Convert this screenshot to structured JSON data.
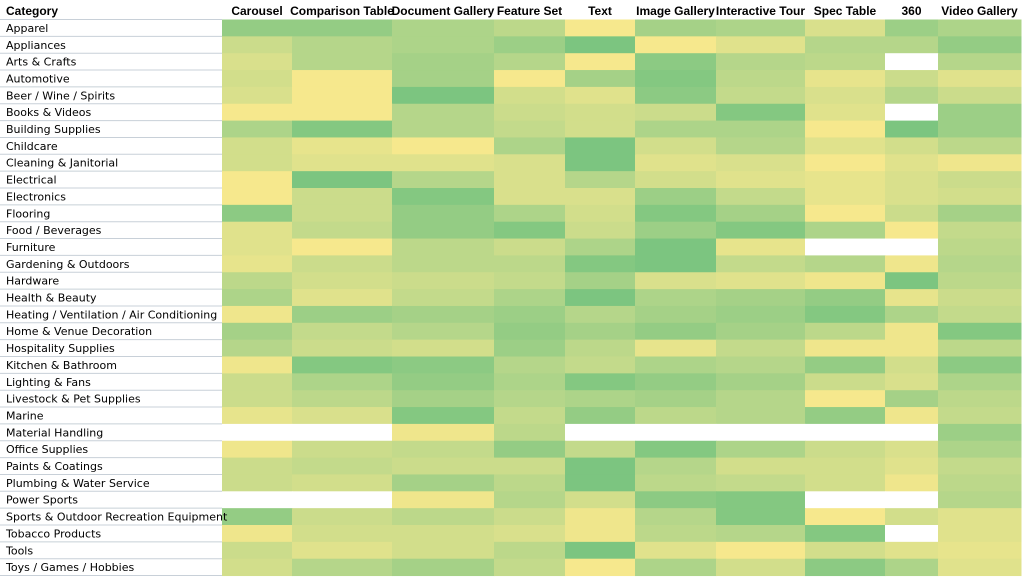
{
  "chart_data": {
    "type": "heatmap",
    "corner_label": "Category",
    "columns": [
      "Carousel",
      "Comparison Table",
      "Document Gallery",
      "Feature Set",
      "Text",
      "Image Gallery",
      "Interactive Tour",
      "Spec Table",
      "360",
      "Video Gallery"
    ],
    "rows": [
      "Apparel",
      "Appliances",
      "Arts & Crafts",
      "Automotive",
      "Beer / Wine / Spirits",
      "Books & Videos",
      "Building Supplies",
      "Childcare",
      "Cleaning & Janitorial",
      "Electrical",
      "Electronics",
      "Flooring",
      "Food / Beverages",
      "Furniture",
      "Gardening & Outdoors",
      "Hardware",
      "Health & Beauty",
      "Heating / Ventilation / Air Conditioning",
      "Home & Venue Decoration",
      "Hospitality Supplies",
      "Kitchen & Bathroom",
      "Lighting & Fans",
      "Livestock & Pet Supplies",
      "Marine",
      "Material Handling",
      "Office Supplies",
      "Paints & Coatings",
      "Plumbing & Water Service",
      "Power Sports",
      "Sports & Outdoor Recreation Equipment",
      "Tobacco Products",
      "Tools",
      "Toys / Games / Hobbies"
    ],
    "values": [
      [
        0.7,
        0.7,
        0.55,
        0.45,
        0.05,
        0.6,
        0.55,
        0.25,
        0.65,
        0.55
      ],
      [
        0.35,
        0.5,
        0.55,
        0.65,
        0.85,
        0.05,
        0.2,
        0.5,
        0.5,
        0.7
      ],
      [
        0.25,
        0.5,
        0.6,
        0.5,
        0.05,
        0.75,
        0.5,
        0.45,
        null,
        0.5
      ],
      [
        0.3,
        0.05,
        0.6,
        0.05,
        0.6,
        0.8,
        0.45,
        0.15,
        0.35,
        0.2
      ],
      [
        0.25,
        0.05,
        0.85,
        0.3,
        0.2,
        0.75,
        0.4,
        0.25,
        0.5,
        0.35
      ],
      [
        0.05,
        0.05,
        0.5,
        0.35,
        0.3,
        0.35,
        0.8,
        0.2,
        null,
        0.65
      ],
      [
        0.55,
        0.8,
        0.5,
        0.4,
        0.3,
        0.55,
        0.55,
        0.05,
        0.85,
        0.65
      ],
      [
        0.3,
        0.15,
        0.05,
        0.55,
        0.85,
        0.3,
        0.5,
        0.2,
        0.3,
        0.45
      ],
      [
        0.3,
        0.2,
        0.2,
        0.25,
        0.85,
        0.2,
        0.25,
        0.05,
        0.2,
        0.1
      ],
      [
        0.05,
        0.85,
        0.5,
        0.25,
        0.5,
        0.3,
        0.2,
        0.15,
        0.25,
        0.35
      ],
      [
        0.05,
        0.35,
        0.8,
        0.25,
        0.25,
        0.65,
        0.4,
        0.15,
        0.25,
        0.3
      ],
      [
        0.75,
        0.35,
        0.7,
        0.55,
        0.3,
        0.8,
        0.6,
        0.05,
        0.35,
        0.6
      ],
      [
        0.2,
        0.4,
        0.7,
        0.8,
        0.35,
        0.65,
        0.8,
        0.55,
        0.05,
        0.4
      ],
      [
        0.2,
        0.05,
        0.45,
        0.35,
        0.55,
        0.85,
        0.15,
        null,
        null,
        0.45
      ],
      [
        0.15,
        0.35,
        0.45,
        0.45,
        0.8,
        0.85,
        0.4,
        0.5,
        0.1,
        0.5
      ],
      [
        0.45,
        0.3,
        0.35,
        0.4,
        0.6,
        0.25,
        0.2,
        0.1,
        0.85,
        0.45
      ],
      [
        0.55,
        0.2,
        0.4,
        0.55,
        0.85,
        0.55,
        0.6,
        0.7,
        0.15,
        0.35
      ],
      [
        0.1,
        0.65,
        0.6,
        0.65,
        0.5,
        0.6,
        0.65,
        0.8,
        0.55,
        0.4
      ],
      [
        0.6,
        0.4,
        0.5,
        0.7,
        0.6,
        0.7,
        0.6,
        0.45,
        0.1,
        0.8
      ],
      [
        0.5,
        0.35,
        0.3,
        0.65,
        0.45,
        0.15,
        0.4,
        0.1,
        0.1,
        0.45
      ],
      [
        0.1,
        0.8,
        0.75,
        0.5,
        0.4,
        0.55,
        0.5,
        0.7,
        0.3,
        0.75
      ],
      [
        0.35,
        0.55,
        0.7,
        0.55,
        0.8,
        0.7,
        0.6,
        0.35,
        0.25,
        0.55
      ],
      [
        0.35,
        0.45,
        0.6,
        0.5,
        0.55,
        0.6,
        0.5,
        0.05,
        0.6,
        0.45
      ],
      [
        0.15,
        0.25,
        0.8,
        0.4,
        0.7,
        0.45,
        0.5,
        0.7,
        0.1,
        0.4
      ],
      [
        null,
        null,
        0.1,
        0.45,
        null,
        null,
        null,
        null,
        null,
        0.65
      ],
      [
        0.1,
        0.35,
        0.4,
        0.7,
        0.4,
        0.8,
        0.55,
        0.35,
        0.25,
        0.55
      ],
      [
        0.35,
        0.4,
        0.35,
        0.35,
        0.85,
        0.5,
        0.3,
        0.3,
        0.2,
        0.4
      ],
      [
        0.35,
        0.3,
        0.6,
        0.45,
        0.85,
        0.45,
        0.4,
        0.3,
        0.1,
        0.45
      ],
      [
        null,
        null,
        0.1,
        0.5,
        0.3,
        0.75,
        0.8,
        null,
        null,
        0.5
      ],
      [
        0.7,
        0.35,
        0.45,
        0.35,
        0.1,
        0.5,
        0.8,
        0.05,
        0.3,
        0.2
      ],
      [
        0.1,
        0.3,
        0.3,
        0.25,
        0.1,
        0.45,
        0.5,
        0.8,
        null,
        0.2
      ],
      [
        0.35,
        0.2,
        0.3,
        0.45,
        0.85,
        0.2,
        0.05,
        0.3,
        0.2,
        0.15
      ],
      [
        0.3,
        0.5,
        0.6,
        0.4,
        0.05,
        0.55,
        0.3,
        0.75,
        0.55,
        0.2
      ]
    ],
    "color_scale": {
      "low": "#fdea8d",
      "mid": "#b5d68a",
      "high": "#63be7b",
      "missing": "#ffffff"
    },
    "value_range": [
      0,
      1
    ],
    "legend": "none"
  }
}
